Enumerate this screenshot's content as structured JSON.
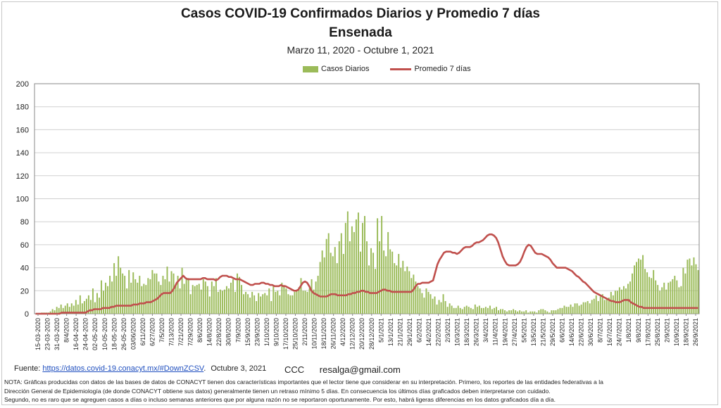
{
  "chart_data": {
    "type": "bar",
    "title": "Casos COVID-19  Confirmados Diarios y Promedio 7 días",
    "subtitle": "Ensenada",
    "date_range": "Marzo 11, 2020 - Octubre  1, 2021",
    "xlabel": "",
    "ylabel": "",
    "ylim": [
      0,
      200
    ],
    "y_ticks": [
      0,
      20,
      40,
      60,
      80,
      100,
      120,
      140,
      160,
      180,
      200
    ],
    "grid": true,
    "legend_position": "top",
    "x_tick_labels": [
      "15-03-2020",
      "23-03-2020",
      "31-03-2020",
      "8/4/2020",
      "16-04-2020",
      "24-04-2020",
      "02-05-2020",
      "10-05-2020",
      "18-05-2020",
      "26-05-2020",
      "03/06/2020",
      "6/11/2020",
      "6/27/2020",
      "7/5/2020",
      "7/13/2020",
      "7/21/2020",
      "7/29/2020",
      "8/6/2020",
      "14/8/2020",
      "22/8/2020",
      "30/8/2020",
      "7/9/2020",
      "15/9/2020",
      "23/9/2020",
      "1/10/2020",
      "9/10/2020",
      "17/10/2020",
      "25/10/2020",
      "2/11/2020",
      "10/11/2020",
      "18/11/2020",
      "26/11/2020",
      "4/12/2020",
      "12/12/2020",
      "20/12/2020",
      "28/12/2020",
      "5/1/2021",
      "13/1/2021",
      "21/1/2021",
      "29/1/2021",
      "6/2/2021",
      "14/2/2021",
      "22/2/2021",
      "2/3/2021",
      "10/3/2021",
      "18/3/2021",
      "26/3/2021",
      "3/4/2021",
      "11/4/2021",
      "19/4/2021",
      "27/4/2021",
      "5/5/2021",
      "13/5/2021",
      "21/5/2021",
      "29/5/2021",
      "6/6/2021",
      "14/6/2021",
      "22/6/2021",
      "30/6/2021",
      "8/7/2021",
      "16/7/2021",
      "24/7/2021",
      "1/8/2021",
      "9/8/2021",
      "17/8/2021",
      "25/8/2021",
      "2/9/2021",
      "10/9/2021",
      "18/9/2021",
      "26/9/2021"
    ],
    "series": [
      {
        "name": "Casos Diarios",
        "type": "bar",
        "color": "#9bbb59",
        "values": [
          0,
          0,
          0,
          1,
          1,
          1,
          1,
          2,
          4,
          3,
          6,
          5,
          8,
          5,
          7,
          9,
          6,
          9,
          7,
          12,
          8,
          16,
          9,
          11,
          13,
          16,
          12,
          22,
          10,
          18,
          14,
          29,
          20,
          27,
          24,
          33,
          28,
          44,
          33,
          50,
          40,
          35,
          33,
          22,
          38,
          27,
          36,
          30,
          27,
          33,
          24,
          26,
          25,
          31,
          30,
          38,
          35,
          35,
          28,
          25,
          33,
          30,
          41,
          28,
          37,
          35,
          24,
          33,
          22,
          40,
          26,
          30,
          31,
          17,
          25,
          24,
          25,
          26,
          21,
          30,
          28,
          24,
          15,
          28,
          24,
          31,
          19,
          21,
          20,
          21,
          24,
          22,
          27,
          30,
          19,
          35,
          32,
          25,
          17,
          19,
          17,
          14,
          19,
          16,
          11,
          18,
          15,
          17,
          18,
          16,
          22,
          11,
          24,
          19,
          20,
          16,
          27,
          25,
          22,
          17,
          16,
          16,
          19,
          20,
          23,
          31,
          20,
          20,
          19,
          22,
          30,
          21,
          28,
          33,
          45,
          55,
          49,
          65,
          70,
          53,
          50,
          58,
          44,
          63,
          70,
          52,
          79,
          89,
          63,
          76,
          71,
          82,
          88,
          54,
          79,
          85,
          63,
          42,
          57,
          53,
          39,
          83,
          63,
          85,
          55,
          50,
          71,
          56,
          54,
          44,
          42,
          52,
          40,
          46,
          37,
          41,
          37,
          31,
          34,
          28,
          24,
          22,
          18,
          14,
          22,
          19,
          17,
          13,
          15,
          8,
          12,
          10,
          17,
          11,
          6,
          9,
          7,
          5,
          5,
          7,
          5,
          4,
          6,
          7,
          6,
          5,
          4,
          8,
          6,
          7,
          5,
          5,
          6,
          5,
          7,
          4,
          5,
          6,
          3,
          4,
          4,
          3,
          2,
          3,
          3,
          4,
          3,
          2,
          3,
          2,
          2,
          3,
          1,
          2,
          2,
          2,
          1,
          3,
          4,
          4,
          3,
          2,
          1,
          3,
          3,
          3,
          4,
          5,
          5,
          7,
          6,
          6,
          8,
          6,
          9,
          9,
          7,
          8,
          10,
          10,
          11,
          9,
          12,
          13,
          16,
          11,
          15,
          17,
          12,
          13,
          14,
          19,
          16,
          20,
          20,
          23,
          21,
          24,
          22,
          26,
          28,
          35,
          42,
          45,
          48,
          47,
          51,
          39,
          36,
          32,
          31,
          38,
          29,
          25,
          20,
          23,
          27,
          21,
          27,
          28,
          30,
          33,
          29,
          23,
          24,
          40,
          35,
          47,
          48,
          42,
          49,
          43,
          38
        ]
      },
      {
        "name": "Promedio 7 días",
        "type": "line",
        "color": "#c0504d",
        "values": [
          0,
          0,
          0,
          0,
          0,
          0,
          0,
          0,
          0,
          0,
          0,
          0,
          1,
          1,
          1,
          1,
          1,
          1,
          1,
          1,
          1,
          1,
          1,
          1,
          2,
          3,
          3,
          4,
          4,
          4,
          4,
          5,
          5,
          5,
          5,
          6,
          6,
          7,
          7,
          7,
          7,
          7,
          7,
          7,
          7,
          8,
          8,
          8,
          9,
          9,
          9,
          10,
          10,
          10,
          11,
          12,
          13,
          15,
          17,
          18,
          18,
          18,
          18,
          20,
          23,
          27,
          29,
          31,
          33,
          31,
          30,
          30,
          30,
          30,
          30,
          30,
          30,
          31,
          31,
          30,
          30,
          30,
          30,
          29,
          30,
          32,
          33,
          33,
          33,
          32,
          32,
          31,
          30,
          30,
          30,
          29,
          28,
          27,
          26,
          25,
          25,
          26,
          26,
          26,
          27,
          27,
          26,
          26,
          25,
          25,
          24,
          24,
          24,
          25,
          24,
          24,
          23,
          22,
          21,
          20,
          20,
          21,
          24,
          27,
          28,
          27,
          24,
          20,
          18,
          17,
          16,
          15,
          15,
          15,
          15,
          16,
          17,
          17,
          17,
          16,
          16,
          16,
          16,
          16,
          17,
          17,
          18,
          18,
          19,
          19,
          20,
          20,
          19,
          19,
          18,
          18,
          18,
          18,
          19,
          20,
          21,
          21,
          20,
          20,
          19,
          19,
          19,
          19,
          19,
          19,
          19,
          19,
          19,
          19,
          21,
          24,
          26,
          26,
          27,
          27,
          27,
          27,
          28,
          29,
          36,
          43,
          47,
          50,
          53,
          54,
          54,
          54,
          53,
          53,
          52,
          53,
          55,
          57,
          58,
          58,
          58,
          59,
          61,
          62,
          62,
          63,
          64,
          66,
          68,
          69,
          69,
          68,
          66,
          62,
          56,
          50,
          46,
          43,
          42,
          42,
          42,
          42,
          43,
          45,
          49,
          54,
          58,
          60,
          59,
          56,
          53,
          52,
          52,
          52,
          51,
          50,
          49,
          47,
          44,
          42,
          40,
          40,
          40,
          40,
          40,
          39,
          38,
          37,
          35,
          33,
          32,
          30,
          28,
          27,
          25,
          23,
          21,
          19,
          18,
          17,
          16,
          15,
          14,
          13,
          12,
          11,
          11,
          10,
          10,
          10,
          11,
          12,
          12,
          12,
          10,
          9,
          8,
          7,
          6,
          6,
          5,
          5,
          5,
          5,
          5,
          5,
          5,
          5,
          5,
          5,
          5,
          5,
          5,
          5,
          5,
          5,
          5,
          5,
          5,
          5,
          5,
          5,
          5,
          5,
          5,
          5
        ]
      }
    ]
  },
  "legend": {
    "bar_label": "Casos Diarios",
    "line_label": "Promedio 7 días"
  },
  "footer": {
    "source_label": "Fuente:",
    "source_link": "https://datos.covid-19.conacyt.mx/#DownZCSV",
    "source_date": "Octubre 3, 2021",
    "author": "CCC",
    "email": "resalga@gmail.com",
    "note_line1": "NOTA: Gráficas producidas con datos de las bases de datos de CONACYT tienen dos características importantes que el lector tiene que considerar en su interpretación. Primero, los reportes de las entidades federativas a la",
    "note_line2": "Dirección General de Epidemiología (de donde CONACYT obtiene sus datos) generalmente tienen un retraso mínimo 5 días. En consecuencia los últimos días graficados deben interpretarse con cuidado.",
    "note_line3": "Segundo, no es raro que se agreguen casos a días o incluso semanas anteriores que por alguna razón no se reportaron oportunamente. Por esto, habrá ligeras diferencias en los datos graficados día a día."
  }
}
